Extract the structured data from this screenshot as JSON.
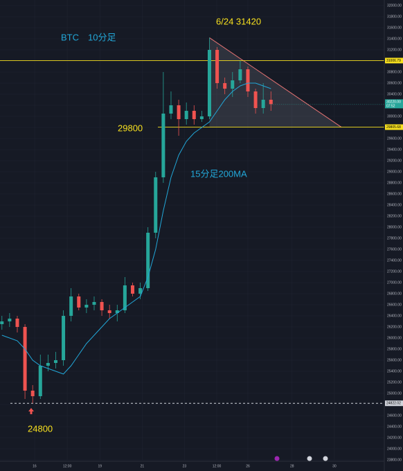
{
  "chart_data": {
    "type": "candlestick",
    "title": "BTC　10分足",
    "annotations": {
      "peak": "6/24 31420",
      "support": "29800",
      "ma": "15分足200MA",
      "low": "24800"
    },
    "x": [
      0.5,
      2.5,
      4.5,
      6.5,
      8.5,
      10.5,
      12.5,
      14.5,
      16.5,
      18.5,
      20.5,
      22.5,
      24.5,
      26.5,
      28.5,
      30.5,
      32.5,
      34.5,
      36.5,
      38.5,
      40.5,
      42.5,
      44.5,
      46.5,
      48.5,
      50.5,
      52.5,
      54.5,
      56.5,
      58.5,
      60.5,
      62.5,
      64.5,
      66.5,
      68.5,
      70.5
    ],
    "open": [
      26250,
      26300,
      26350,
      26200,
      25050,
      24950,
      25500,
      25550,
      25600,
      26400,
      26750,
      26550,
      26600,
      26650,
      26500,
      26450,
      26500,
      26950,
      26800,
      26900,
      27900,
      28900,
      30050,
      30200,
      29950,
      30100,
      29950,
      30000,
      31200,
      30600,
      30500,
      30650,
      30850,
      30450,
      30150,
      30300
    ],
    "high": [
      26400,
      26450,
      26400,
      26250,
      25150,
      25700,
      25700,
      25750,
      26500,
      26900,
      26800,
      26700,
      26750,
      26700,
      26600,
      26600,
      27100,
      27000,
      27000,
      28000,
      29000,
      30800,
      30450,
      30300,
      30250,
      30200,
      30100,
      31420,
      31250,
      30700,
      30800,
      31000,
      30900,
      30500,
      30600,
      30450
    ],
    "low": [
      26150,
      26200,
      26100,
      24900,
      24822,
      24900,
      25400,
      25450,
      25500,
      26300,
      26500,
      26450,
      26500,
      26400,
      26350,
      26300,
      26450,
      26750,
      26700,
      26850,
      27800,
      28800,
      29950,
      29650,
      29850,
      29850,
      29900,
      29950,
      30500,
      30400,
      30350,
      30600,
      30350,
      30050,
      30050,
      30100
    ],
    "close": [
      26300,
      26350,
      26200,
      25050,
      24950,
      25500,
      25550,
      25600,
      26400,
      26750,
      26550,
      26600,
      26650,
      26500,
      26450,
      26500,
      26950,
      26800,
      26900,
      27900,
      28900,
      30050,
      30200,
      29950,
      30100,
      29950,
      30000,
      31200,
      30600,
      30500,
      30650,
      30850,
      30450,
      30150,
      30300,
      30220
    ],
    "up_color": "#26a69a",
    "down_color": "#ef5350",
    "ma": {
      "color": "#22a7d8",
      "values": [
        26050,
        26000,
        25950,
        25800,
        25600,
        25500,
        25450,
        25400,
        25350,
        25500,
        25700,
        25900,
        26050,
        26200,
        26350,
        26450,
        26550,
        26650,
        26750,
        27100,
        27600,
        28300,
        28900,
        29300,
        29550,
        29700,
        29800,
        29900,
        30100,
        30300,
        30450,
        30550,
        30600,
        30600,
        30550,
        30500
      ]
    },
    "levels": [
      {
        "value": 31006.79,
        "label": "31006.79",
        "color": "#f7e01f"
      },
      {
        "value": 29805.68,
        "label": "29805.68",
        "color": "#f7e01f"
      },
      {
        "value": 24822.02,
        "label": "24822.02",
        "color": "#d1d4dc"
      }
    ],
    "current": {
      "value": 30220,
      "label": "30220.00",
      "countdown": "07:52",
      "color": "#26a69a"
    },
    "xlim": [
      0,
      100
    ],
    "xticks": [
      {
        "value": 9,
        "label": "16"
      },
      {
        "value": 17.5,
        "label": "12:00"
      },
      {
        "value": 26,
        "label": "19"
      },
      {
        "value": 37,
        "label": "21"
      },
      {
        "value": 48,
        "label": "23"
      },
      {
        "value": 56.4,
        "label": "12:00"
      },
      {
        "value": 64.5,
        "label": "26"
      },
      {
        "value": 76,
        "label": "28"
      },
      {
        "value": 87,
        "label": "30"
      }
    ],
    "ylim": [
      23800,
      32100
    ],
    "yticks": [
      {
        "value": 23800,
        "label": "23800.00"
      },
      {
        "value": 24000,
        "label": "24000.00"
      },
      {
        "value": 24200,
        "label": "24200.00"
      },
      {
        "value": 24400,
        "label": "24400.00"
      },
      {
        "value": 24600,
        "label": "24600.00"
      },
      {
        "value": 24800,
        "label": "24800.00"
      },
      {
        "value": 25000,
        "label": "25000.00"
      },
      {
        "value": 25200,
        "label": "25200.00"
      },
      {
        "value": 25400,
        "label": "25400.00"
      },
      {
        "value": 25600,
        "label": "25600.00"
      },
      {
        "value": 25800,
        "label": "25800.00"
      },
      {
        "value": 26000,
        "label": "26000.00"
      },
      {
        "value": 26200,
        "label": "26200.00"
      },
      {
        "value": 26400,
        "label": "26400.00"
      },
      {
        "value": 26600,
        "label": "26600.00"
      },
      {
        "value": 26800,
        "label": "26800.00"
      },
      {
        "value": 27000,
        "label": "27000.00"
      },
      {
        "value": 27200,
        "label": "27200.00"
      },
      {
        "value": 27400,
        "label": "27400.00"
      },
      {
        "value": 27600,
        "label": "27600.00"
      },
      {
        "value": 27800,
        "label": "27800.00"
      },
      {
        "value": 28000,
        "label": "28000.00"
      },
      {
        "value": 28200,
        "label": "28200.00"
      },
      {
        "value": 28400,
        "label": "28400.00"
      },
      {
        "value": 28600,
        "label": "28600.00"
      },
      {
        "value": 28800,
        "label": "28800.00"
      },
      {
        "value": 29000,
        "label": "29000.00"
      },
      {
        "value": 29200,
        "label": "29200.00"
      },
      {
        "value": 29400,
        "label": "29400.00"
      },
      {
        "value": 29600,
        "label": "29600.00"
      },
      {
        "value": 29800,
        "label": "29800.00"
      },
      {
        "value": 30000,
        "label": "30000.00"
      },
      {
        "value": 30200,
        "label": "30200.00"
      },
      {
        "value": 30400,
        "label": "30400.00"
      },
      {
        "value": 30600,
        "label": "30600.00"
      },
      {
        "value": 30800,
        "label": "30800.00"
      },
      {
        "value": 31000,
        "label": "31000.00"
      },
      {
        "value": 31200,
        "label": "31200.00"
      },
      {
        "value": 31400,
        "label": "31400.00"
      },
      {
        "value": 31600,
        "label": "31600.00"
      },
      {
        "value": 31800,
        "label": "31800.00"
      },
      {
        "value": 32000,
        "label": "32000.00"
      }
    ],
    "grid": true
  }
}
